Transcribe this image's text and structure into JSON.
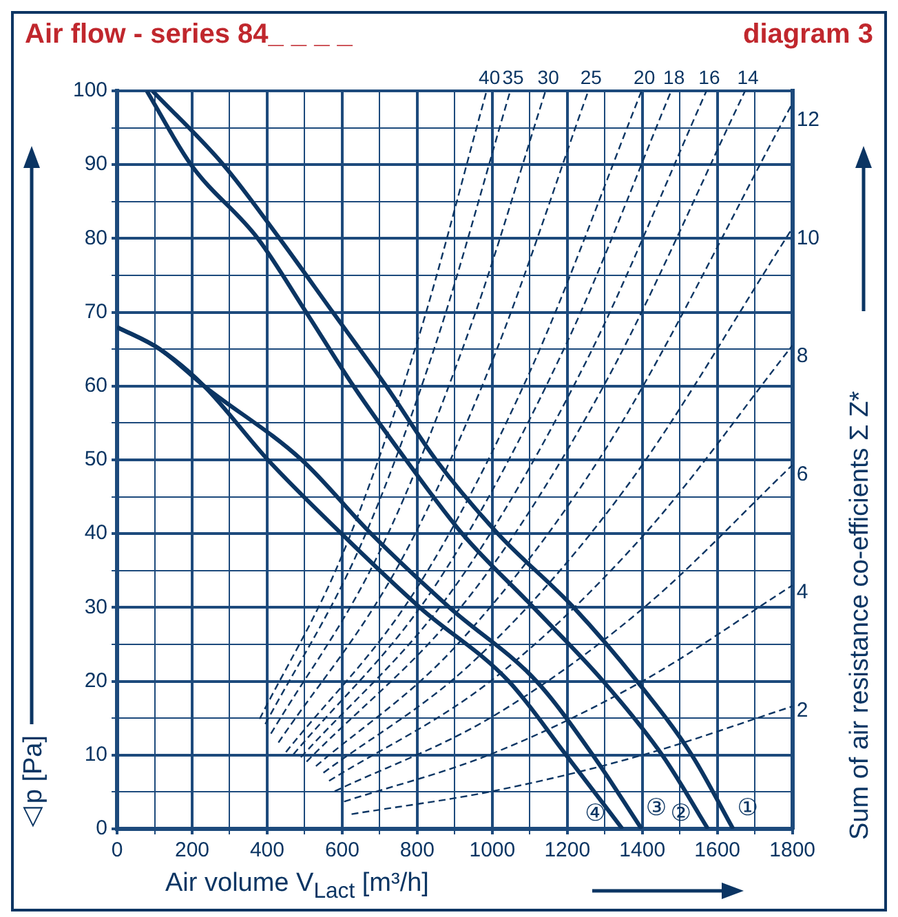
{
  "chart_data": {
    "type": "line",
    "title": "Air flow - series 84_ _ _ _",
    "subtitle": "diagram 3",
    "xlabel": "Air volume V$_{Lact}$ [m³/h]",
    "ylabel": "△p [Pa]",
    "y2label": "Sum of air resistance co-efficients Σ Z*",
    "xlim": [
      0,
      1800
    ],
    "xticks": [
      0,
      {
        "value": 100,
        "label": null
      },
      200,
      {
        "value": 300,
        "label": null
      },
      400,
      {
        "value": 500,
        "label": null
      },
      600,
      {
        "value": 700,
        "label": null
      },
      800,
      {
        "value": 900,
        "label": null
      },
      1000,
      {
        "value": 1100,
        "label": null
      },
      1200,
      {
        "value": 1300,
        "label": null
      },
      1400,
      {
        "value": 1500,
        "label": null
      },
      1600,
      {
        "value": 1700,
        "label": null
      },
      1800
    ],
    "ylim": [
      0,
      100
    ],
    "yticks": [
      0,
      {
        "value": 5,
        "label": null
      },
      10,
      {
        "value": 15,
        "label": null
      },
      20,
      {
        "value": 25,
        "label": null
      },
      30,
      {
        "value": 35,
        "label": null
      },
      40,
      {
        "value": 45,
        "label": null
      },
      50,
      {
        "value": 55,
        "label": null
      },
      60,
      {
        "value": 65,
        "label": null
      },
      70,
      {
        "value": 75,
        "label": null
      },
      80,
      {
        "value": 85,
        "label": null
      },
      90,
      {
        "value": 95,
        "label": null
      },
      100
    ],
    "y2lim": [
      0,
      12.5
    ],
    "y2ticks": [
      2,
      4,
      6,
      8,
      10,
      12
    ],
    "grid": true,
    "legend": false,
    "marker": "none",
    "series": [
      {
        "name": "①",
        "color": "#0b3563",
        "line_style": "solid",
        "x": [
          94,
          283,
          433,
          575,
          717,
          850,
          1015,
          1217,
          1386,
          1532,
          1642
        ],
        "values": [
          100,
          90,
          80,
          70,
          60,
          50,
          40,
          30,
          20,
          10,
          0
        ]
      },
      {
        "name": "②",
        "color": "#0b3563",
        "line_style": "solid",
        "x": [
          79,
          197,
          375,
          504,
          630,
          770,
          920,
          1110,
          1296,
          1453,
          1575
        ],
        "values": [
          100,
          90,
          80,
          70,
          60,
          50,
          40,
          30,
          20,
          10,
          0
        ]
      },
      {
        "name": "③",
        "color": "#0b3563",
        "line_style": "solid",
        "x": [
          0,
          114,
          232,
          492,
          677,
          886,
          1118,
          1268,
          1398
        ],
        "values": [
          68,
          65,
          60,
          50,
          40,
          30,
          20,
          10,
          0
        ]
      },
      {
        "name": "④",
        "color": "#0b3563",
        "line_style": "solid",
        "x": [
          0,
          114,
          232,
          402,
          598,
          807,
          1044,
          1197,
          1347
        ],
        "values": [
          68,
          65,
          60,
          50,
          40,
          30,
          20,
          10,
          0
        ]
      },
      {
        "name": "40",
        "color": "#0b3563",
        "line_style": "dashed",
        "x": [
          380,
          600,
          800,
          985
        ],
        "values": [
          14.9,
          37.1,
          66.0,
          100
        ]
      },
      {
        "name": "35",
        "color": "#0b3563",
        "line_style": "dashed",
        "x": [
          395,
          650,
          850,
          1048
        ],
        "values": [
          14.2,
          38.5,
          65.8,
          100
        ]
      },
      {
        "name": "30",
        "color": "#0b3563",
        "line_style": "dashed",
        "x": [
          410,
          700,
          950,
          1142
        ],
        "values": [
          12.9,
          37.6,
          69.2,
          100
        ]
      },
      {
        "name": "25",
        "color": "#0b3563",
        "line_style": "dashed",
        "x": [
          430,
          750,
          1000,
          1256
        ],
        "values": [
          11.7,
          35.7,
          63.4,
          100
        ]
      },
      {
        "name": "20",
        "color": "#0b3563",
        "line_style": "dashed",
        "x": [
          450,
          800,
          1100,
          1398
        ],
        "values": [
          10.4,
          32.7,
          61.9,
          100
        ]
      },
      {
        "name": "18",
        "color": "#0b3563",
        "line_style": "dashed",
        "x": [
          470,
          850,
          1200,
          1477
        ],
        "values": [
          10.1,
          33.1,
          66.0,
          100
        ]
      },
      {
        "name": "16",
        "color": "#0b3563",
        "line_style": "dashed",
        "x": [
          490,
          900,
          1250,
          1571
        ],
        "values": [
          9.7,
          32.8,
          63.3,
          100
        ]
      },
      {
        "name": "14",
        "color": "#0b3563",
        "line_style": "dashed",
        "x": [
          505,
          950,
          1300,
          1674
        ],
        "values": [
          9.1,
          32.2,
          60.3,
          100
        ]
      },
      {
        "color": "#0b3563",
        "line_style": "dashed",
        "x": [
          530,
          900,
          1300,
          1800
        ],
        "values": [
          8.5,
          24.6,
          51.3,
          98.3
        ]
      },
      {
        "color": "#0b3563",
        "line_style": "dashed",
        "x": [
          550,
          950,
          1350,
          1800
        ],
        "values": [
          7.6,
          22.7,
          45.8,
          81.4
        ]
      },
      {
        "color": "#0b3563",
        "line_style": "dashed",
        "x": [
          565,
          1000,
          1400,
          1800
        ],
        "values": [
          6.5,
          20.2,
          39.6,
          65.5
        ]
      },
      {
        "color": "#0b3563",
        "line_style": "dashed",
        "x": [
          580,
          1000,
          1400,
          1800
        ],
        "values": [
          5.1,
          15.2,
          29.8,
          49.3
        ]
      },
      {
        "color": "#0b3563",
        "line_style": "dashed",
        "x": [
          605,
          1000,
          1400,
          1800
        ],
        "values": [
          3.7,
          10.2,
          20.0,
          33.0
        ]
      },
      {
        "color": "#0b3563",
        "line_style": "dashed",
        "x": [
          625,
          1000,
          1400,
          1800
        ],
        "values": [
          2.0,
          5.1,
          10.0,
          16.6
        ]
      }
    ]
  }
}
